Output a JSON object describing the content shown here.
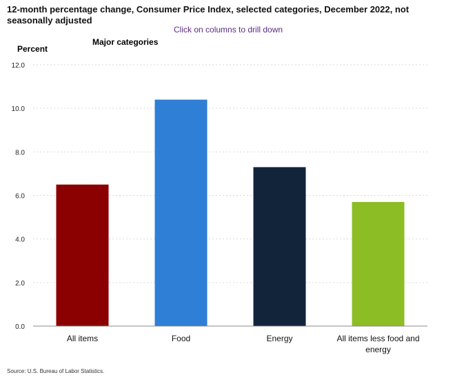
{
  "header": {
    "title": "12-month percentage change, Consumer Price Index, selected categories, December 2022, not seasonally adjusted",
    "drill_hint": "Click on columns to drill down"
  },
  "chart_data": {
    "type": "bar",
    "title": "Major categories",
    "ylabel": "Percent",
    "xlabel": "",
    "ylim": [
      0,
      12
    ],
    "yticks": [
      "0.0",
      "2.0",
      "4.0",
      "6.0",
      "8.0",
      "10.0",
      "12.0"
    ],
    "categories": [
      [
        "All items"
      ],
      [
        "Food"
      ],
      [
        "Energy"
      ],
      [
        "All items less food and",
        "energy"
      ]
    ],
    "values": [
      6.5,
      10.4,
      7.3,
      5.7
    ],
    "colors": [
      "#8b0000",
      "#2f7fd6",
      "#12243a",
      "#8cbd24"
    ],
    "grid": true,
    "legend": "none"
  },
  "footer": {
    "source": "Source: U.S. Bureau of Labor Statistics."
  }
}
